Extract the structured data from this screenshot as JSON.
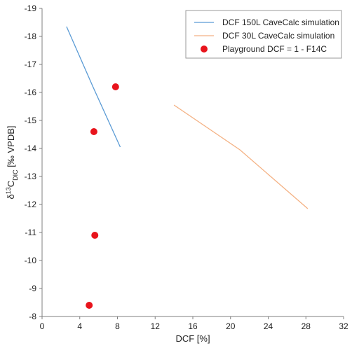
{
  "chart_data": {
    "type": "scatter",
    "title": "",
    "xlabel": "DCF [%]",
    "ylabel": {
      "prefix": "δ",
      "sup": "13",
      "main": "C",
      "sub": "DIC",
      "suffix": " [‰ VPDB]"
    },
    "xlim": [
      0,
      32
    ],
    "ylim": [
      -8,
      -19
    ],
    "x_ticks": [
      0,
      4,
      8,
      12,
      16,
      20,
      24,
      28,
      32
    ],
    "y_ticks": [
      -19,
      -18,
      -17,
      -16,
      -15,
      -14,
      -13,
      -12,
      -11,
      -10,
      -9,
      -8
    ],
    "grid": false,
    "legend_position": "top-right",
    "series": [
      {
        "name": "DCF 150L CaveCalc simulation",
        "kind": "line",
        "color": "#5B9BD5",
        "points": [
          [
            2.6,
            -18.35
          ],
          [
            5.4,
            -16.2
          ],
          [
            8.3,
            -14.05
          ]
        ]
      },
      {
        "name": "DCF 30L CaveCalc simulation",
        "kind": "line",
        "color": "#F4B183",
        "points": [
          [
            14.0,
            -15.55
          ],
          [
            21.0,
            -13.95
          ],
          [
            28.2,
            -11.85
          ]
        ]
      },
      {
        "name": "Playground DCF = 1 - F14C",
        "kind": "scatter",
        "color": "#E8141C",
        "points": [
          [
            7.8,
            -16.2
          ],
          [
            5.5,
            -14.6
          ],
          [
            5.6,
            -10.9
          ],
          [
            5.0,
            -8.4
          ]
        ]
      }
    ]
  }
}
